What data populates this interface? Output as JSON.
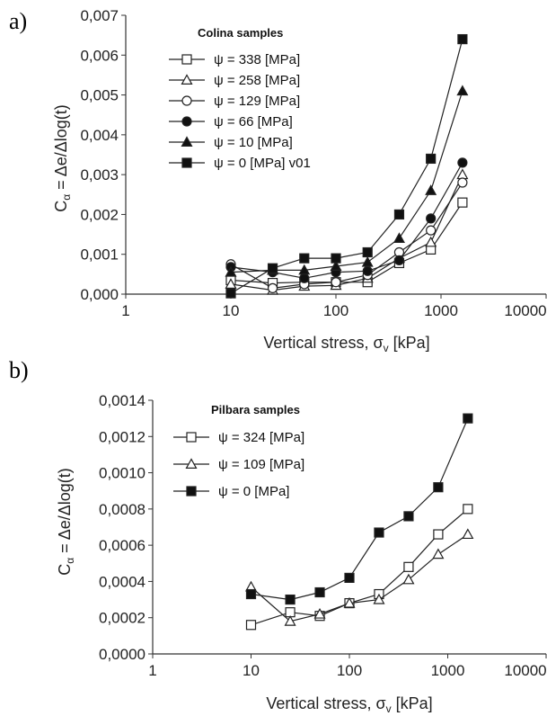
{
  "chart_data": [
    {
      "type": "line",
      "panel_label": "a)",
      "title": "",
      "xlabel": "Vertical stress, σ",
      "xlabel_sub": "v",
      "xlabel_unit": " [kPa]",
      "ylabel": "C",
      "ylabel_sub": "α",
      "ylabel_rest": " = Δe/Δlog(t)",
      "xscale": "log",
      "xlim": [
        1,
        10000
      ],
      "ylim": [
        0,
        0.007
      ],
      "xticks": [
        1,
        10,
        100,
        1000,
        10000
      ],
      "xtick_labels": [
        "1",
        "10",
        "100",
        "1000",
        "10000"
      ],
      "yticks": [
        0,
        0.001,
        0.002,
        0.003,
        0.004,
        0.005,
        0.006,
        0.007
      ],
      "ytick_labels": [
        "0,000",
        "0,001",
        "0,002",
        "0,003",
        "0,004",
        "0,005",
        "0,006",
        "0,007"
      ],
      "legend_title": "Colina samples",
      "legend_position": "top-left",
      "grid": false,
      "series": [
        {
          "name": "ψ = 338 [MPa]",
          "marker": "square-open",
          "x": [
            10,
            25,
            50,
            100,
            200,
            400,
            800,
            1600
          ],
          "y": [
            0.00035,
            0.00028,
            0.0003,
            0.0003,
            0.0003,
            0.00078,
            0.00112,
            0.0023
          ]
        },
        {
          "name": "ψ = 258 [MPa]",
          "marker": "triangle-open",
          "x": [
            10,
            25,
            50,
            100,
            200,
            400,
            800,
            1600
          ],
          "y": [
            0.00025,
            0.0001,
            0.0002,
            0.00022,
            0.0004,
            0.0009,
            0.0013,
            0.003
          ]
        },
        {
          "name": "ψ = 129 [MPa]",
          "marker": "circle-open",
          "x": [
            10,
            25,
            50,
            100,
            200,
            400,
            800,
            1600
          ],
          "y": [
            0.00075,
            0.00015,
            0.00025,
            0.0003,
            0.00048,
            0.00105,
            0.0016,
            0.0028
          ]
        },
        {
          "name": "ψ = 66 [MPa]",
          "marker": "circle-filled",
          "x": [
            10,
            25,
            50,
            100,
            200,
            400,
            800,
            1600
          ],
          "y": [
            0.00068,
            0.00055,
            0.0004,
            0.00055,
            0.00058,
            0.00085,
            0.0019,
            0.0033
          ]
        },
        {
          "name": "ψ = 10 [MPa]",
          "marker": "triangle-filled",
          "x": [
            10,
            25,
            50,
            100,
            200,
            400,
            800,
            1600
          ],
          "y": [
            0.00055,
            0.0006,
            0.0006,
            0.0007,
            0.0008,
            0.0014,
            0.0026,
            0.0051
          ]
        },
        {
          "name": "ψ = 0 [MPa] v01",
          "marker": "square-filled",
          "x": [
            10,
            25,
            50,
            100,
            200,
            400,
            800,
            1600
          ],
          "y": [
            2e-05,
            0.00065,
            0.0009,
            0.0009,
            0.00105,
            0.002,
            0.0034,
            0.0064
          ]
        }
      ]
    },
    {
      "type": "line",
      "panel_label": "b)",
      "title": "",
      "xlabel": "Vertical stress, σ",
      "xlabel_sub": "v",
      "xlabel_unit": " [kPa]",
      "ylabel": "C",
      "ylabel_sub": "α",
      "ylabel_rest": " = Δe/Δlog(t)",
      "xscale": "log",
      "xlim": [
        1,
        10000
      ],
      "ylim": [
        0,
        0.0014
      ],
      "xticks": [
        1,
        10,
        100,
        1000,
        10000
      ],
      "xtick_labels": [
        "1",
        "10",
        "100",
        "1000",
        "10000"
      ],
      "yticks": [
        0,
        0.0002,
        0.0004,
        0.0006,
        0.0008,
        0.001,
        0.0012,
        0.0014
      ],
      "ytick_labels": [
        "0,0000",
        "0,0002",
        "0,0004",
        "0,0006",
        "0,0008",
        "0,0010",
        "0,0012",
        "0,0014"
      ],
      "legend_title": "Pilbara samples",
      "legend_position": "top-left",
      "grid": false,
      "series": [
        {
          "name": "ψ = 324 [MPa]",
          "marker": "square-open",
          "x": [
            10,
            25,
            50,
            100,
            200,
            400,
            800,
            1600
          ],
          "y": [
            0.00016,
            0.00023,
            0.00021,
            0.00028,
            0.00033,
            0.00048,
            0.00066,
            0.0008
          ]
        },
        {
          "name": "ψ = 109 [MPa]",
          "marker": "triangle-open",
          "x": [
            10,
            25,
            50,
            100,
            200,
            400,
            800,
            1600
          ],
          "y": [
            0.00037,
            0.00018,
            0.00022,
            0.00028,
            0.0003,
            0.00041,
            0.00055,
            0.00066
          ]
        },
        {
          "name": "ψ = 0 [MPa]",
          "marker": "square-filled",
          "x": [
            10,
            25,
            50,
            100,
            200,
            400,
            800,
            1600
          ],
          "y": [
            0.00033,
            0.0003,
            0.00034,
            0.00042,
            0.00067,
            0.00076,
            0.00092,
            0.0013
          ]
        }
      ]
    }
  ]
}
